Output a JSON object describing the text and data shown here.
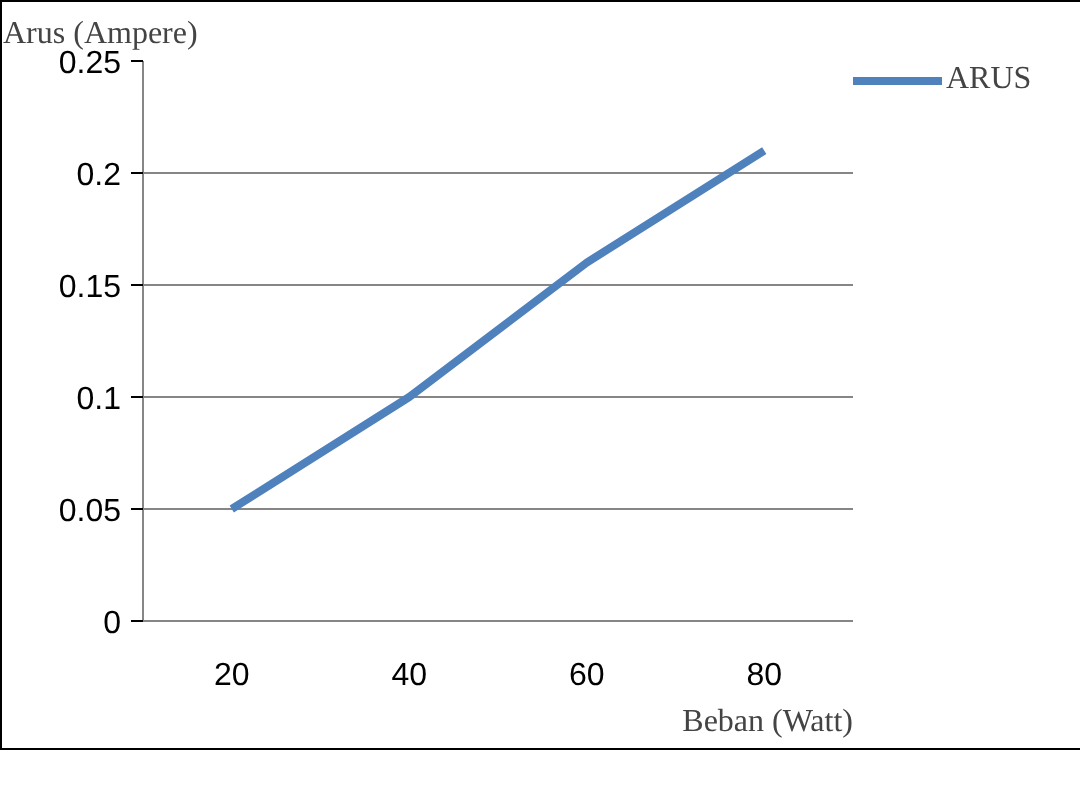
{
  "chart_data": {
    "type": "line",
    "ylabel": "Arus (Ampere)",
    "xlabel": "Beban (Watt)",
    "categories": [
      "20",
      "40",
      "60",
      "80"
    ],
    "series": [
      {
        "name": "ARUS",
        "color": "#4f81bd",
        "values": [
          0.05,
          0.1,
          0.16,
          0.21
        ]
      }
    ],
    "ylim": [
      0,
      0.25
    ],
    "yticks": [
      0,
      0.05,
      0.1,
      0.15,
      0.2,
      0.25
    ],
    "grid": "y",
    "legend": "top right",
    "marker": "none",
    "line_style": "solid"
  }
}
